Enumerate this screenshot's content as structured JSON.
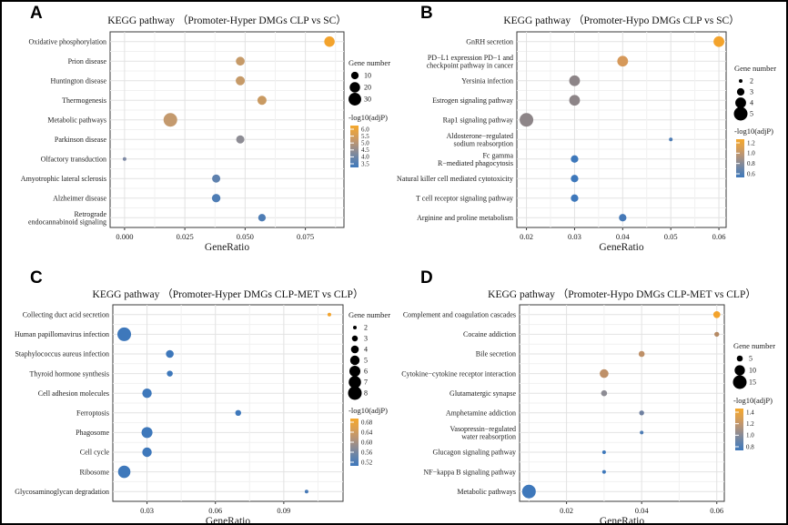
{
  "figure": {
    "name": "KEGG pathway enrichment dot plots",
    "x_axis_label": "GeneRatio",
    "palette": {
      "high_adjp": "#F3A32C",
      "mid_high_adjp": "#C49A6E",
      "mid_adjp": "#8D8C94",
      "low_adjp": "#3E78BB"
    }
  },
  "chart_data": [
    {
      "panel_label": "A",
      "type": "scatter",
      "title": "KEGG pathway （Promoter-Hyper DMGs CLP vs SC）",
      "xlabel": "GeneRatio",
      "xlim": [
        -0.006,
        0.091
      ],
      "xticks": {
        "values": [
          0.0,
          0.025,
          0.05,
          0.075
        ],
        "labels": [
          "0.000",
          "0.025",
          "0.050",
          "0.075"
        ]
      },
      "categories": [
        "Oxidative phosphorylation",
        "Prion disease",
        "Huntington disease",
        "Thermogenesis",
        "Metabolic pathways",
        "Parkinson disease",
        "Olfactory transduction",
        "Amyotrophic lateral sclerosis",
        "Alzheimer disease",
        [
          "Retrograde",
          "endocannabinoid signaling"
        ]
      ],
      "size_domain": [
        2,
        35
      ],
      "points": [
        {
          "pathway": "Oxidative phosphorylation",
          "gene_ratio": 0.085,
          "gene_number": 20,
          "log10_adjp": 6.0,
          "color": "#F3A32C"
        },
        {
          "pathway": "Prion disease",
          "gene_ratio": 0.048,
          "gene_number": 14,
          "log10_adjp": 5.3,
          "color": "#C69A68"
        },
        {
          "pathway": "Huntington disease",
          "gene_ratio": 0.048,
          "gene_number": 15,
          "log10_adjp": 5.3,
          "color": "#C69A68"
        },
        {
          "pathway": "Thermogenesis",
          "gene_ratio": 0.057,
          "gene_number": 15,
          "log10_adjp": 5.4,
          "color": "#C99A62"
        },
        {
          "pathway": "Metabolic pathways",
          "gene_ratio": 0.019,
          "gene_number": 35,
          "log10_adjp": 5.0,
          "color": "#C49A6E"
        },
        {
          "pathway": "Parkinson disease",
          "gene_ratio": 0.048,
          "gene_number": 12,
          "log10_adjp": 4.3,
          "color": "#8D8C94"
        },
        {
          "pathway": "Olfactory transduction",
          "gene_ratio": 0.0,
          "gene_number": 2,
          "log10_adjp": 4.0,
          "color": "#7E89A4"
        },
        {
          "pathway": "Amyotrophic lateral sclerosis",
          "gene_ratio": 0.038,
          "gene_number": 12,
          "log10_adjp": 3.7,
          "color": "#5E81AE"
        },
        {
          "pathway": "Alzheimer disease",
          "gene_ratio": 0.038,
          "gene_number": 13,
          "log10_adjp": 3.6,
          "color": "#4E7DB5"
        },
        {
          "pathway": "Retrograde endocannabinoid signaling",
          "gene_ratio": 0.057,
          "gene_number": 10,
          "log10_adjp": 3.7,
          "color": "#4E7DB5"
        }
      ],
      "legend": {
        "size_title": "Gene number",
        "sizes": [
          10,
          20,
          30
        ],
        "color_title": "-log10(adjP)",
        "color_ticks": [
          "6.0",
          "5.5",
          "5.0",
          "4.5",
          "4.0",
          "3.5"
        ],
        "gradient": [
          "#F5A82B",
          "#DDA04F",
          "#BB9573",
          "#8F8C92",
          "#6383AB",
          "#3E78BB"
        ]
      }
    },
    {
      "panel_label": "B",
      "type": "scatter",
      "title": "KEGG pathway （Promoter-Hypo DMGs CLP vs SC）",
      "xlabel": "GeneRatio",
      "xlim": [
        0.018,
        0.0615
      ],
      "xticks": {
        "values": [
          0.02,
          0.03,
          0.04,
          0.05,
          0.06
        ],
        "labels": [
          "0.02",
          "0.03",
          "0.04",
          "0.05",
          "0.06"
        ]
      },
      "categories": [
        "GnRH secretion",
        [
          "PD−L1 expression PD−1 and",
          "checkpoint pathway in cancer"
        ],
        "Yersinia infection",
        "Estrogen signaling pathway",
        "Rap1 signaling pathway",
        [
          "Aldosterone−regulated",
          "sodium reabsorption"
        ],
        [
          "Fc gamma",
          "R−mediated phagocytosis"
        ],
        "Natural killer cell mediated cytotoxicity",
        "T cell receptor signaling pathway",
        "Arginine and proline metabolism"
      ],
      "size_domain": [
        2,
        5
      ],
      "points": [
        {
          "pathway": "GnRH secretion",
          "gene_ratio": 0.06,
          "gene_number": 4,
          "log10_adjp": 1.3,
          "color": "#F3A32C"
        },
        {
          "pathway": "PD-L1 expression PD-1 and checkpoint pathway in cancer",
          "gene_ratio": 0.04,
          "gene_number": 4,
          "log10_adjp": 1.1,
          "color": "#D6995A"
        },
        {
          "pathway": "Yersinia infection",
          "gene_ratio": 0.03,
          "gene_number": 4,
          "log10_adjp": 0.8,
          "color": "#8D8588"
        },
        {
          "pathway": "Estrogen signaling pathway",
          "gene_ratio": 0.03,
          "gene_number": 4,
          "log10_adjp": 0.8,
          "color": "#8D8588"
        },
        {
          "pathway": "Rap1 signaling pathway",
          "gene_ratio": 0.02,
          "gene_number": 5,
          "log10_adjp": 0.8,
          "color": "#8D8588"
        },
        {
          "pathway": "Aldosterone-regulated sodium reabsorption",
          "gene_ratio": 0.05,
          "gene_number": 2,
          "log10_adjp": 0.65,
          "color": "#4E7DB5"
        },
        {
          "pathway": "Fc gamma R-mediated phagocytosis",
          "gene_ratio": 0.03,
          "gene_number": 3,
          "log10_adjp": 0.6,
          "color": "#3E78BB"
        },
        {
          "pathway": "Natural killer cell mediated cytotoxicity",
          "gene_ratio": 0.03,
          "gene_number": 3,
          "log10_adjp": 0.6,
          "color": "#3E78BB"
        },
        {
          "pathway": "T cell receptor signaling pathway",
          "gene_ratio": 0.03,
          "gene_number": 3,
          "log10_adjp": 0.6,
          "color": "#3E78BB"
        },
        {
          "pathway": "Arginine and proline metabolism",
          "gene_ratio": 0.04,
          "gene_number": 3,
          "log10_adjp": 0.62,
          "color": "#4679B7"
        }
      ],
      "legend": {
        "size_title": "Gene number",
        "sizes": [
          2,
          3,
          4,
          5
        ],
        "color_title": "-log10(adjP)",
        "color_ticks": [
          "1.2",
          "1.0",
          "0.8",
          "0.6"
        ],
        "gradient": [
          "#F5A82B",
          "#DDA04F",
          "#BB9573",
          "#8F8C92",
          "#6383AB",
          "#3E78BB"
        ]
      }
    },
    {
      "panel_label": "C",
      "type": "scatter",
      "title": "KEGG pathway （Promoter-Hyper DMGs CLP-MET vs CLP）",
      "xlabel": "GeneRatio",
      "xlim": [
        0.015,
        0.116
      ],
      "xticks": {
        "values": [
          0.03,
          0.06,
          0.09
        ],
        "labels": [
          "0.03",
          "0.06",
          "0.09"
        ]
      },
      "categories": [
        "Collecting duct acid secretion",
        "Human papillomavirus infection",
        "Staphylococcus aureus infection",
        "Thyroid hormone synthesis",
        "Cell adhesion molecules",
        "Ferroptosis",
        "Phagosome",
        "Cell cycle",
        "Ribosome",
        "Glycosaminoglycan degradation"
      ],
      "size_domain": [
        2,
        8
      ],
      "points": [
        {
          "pathway": "Collecting duct acid secretion",
          "gene_ratio": 0.11,
          "gene_number": 2,
          "log10_adjp": 0.68,
          "color": "#F3A32C"
        },
        {
          "pathway": "Human papillomavirus infection",
          "gene_ratio": 0.02,
          "gene_number": 8,
          "log10_adjp": 0.52,
          "color": "#3E78BB"
        },
        {
          "pathway": "Staphylococcus aureus infection",
          "gene_ratio": 0.04,
          "gene_number": 4,
          "log10_adjp": 0.52,
          "color": "#3E78BB"
        },
        {
          "pathway": "Thyroid hormone synthesis",
          "gene_ratio": 0.04,
          "gene_number": 3,
          "log10_adjp": 0.52,
          "color": "#3E78BB"
        },
        {
          "pathway": "Cell adhesion molecules",
          "gene_ratio": 0.03,
          "gene_number": 5,
          "log10_adjp": 0.52,
          "color": "#3E78BB"
        },
        {
          "pathway": "Ferroptosis",
          "gene_ratio": 0.07,
          "gene_number": 3,
          "log10_adjp": 0.52,
          "color": "#3E78BB"
        },
        {
          "pathway": "Phagosome",
          "gene_ratio": 0.03,
          "gene_number": 6,
          "log10_adjp": 0.52,
          "color": "#3E78BB"
        },
        {
          "pathway": "Cell cycle",
          "gene_ratio": 0.03,
          "gene_number": 5,
          "log10_adjp": 0.52,
          "color": "#3E78BB"
        },
        {
          "pathway": "Ribosome",
          "gene_ratio": 0.02,
          "gene_number": 7,
          "log10_adjp": 0.52,
          "color": "#3E78BB"
        },
        {
          "pathway": "Glycosaminoglycan degradation",
          "gene_ratio": 0.1,
          "gene_number": 2,
          "log10_adjp": 0.53,
          "color": "#4679B7"
        }
      ],
      "legend": {
        "size_title": "Gene number",
        "sizes": [
          2,
          3,
          4,
          5,
          6,
          7,
          8
        ],
        "color_title": "-log10(adjP)",
        "color_ticks": [
          "0.68",
          "0.64",
          "0.60",
          "0.56",
          "0.52"
        ],
        "gradient": [
          "#F5A82B",
          "#DDA04F",
          "#BB9573",
          "#8F8C92",
          "#6383AB",
          "#3E78BB"
        ]
      }
    },
    {
      "panel_label": "D",
      "type": "scatter",
      "title": "KEGG pathway （Promoter-Hypo DMGs CLP-MET vs CLP）",
      "xlabel": "GeneRatio",
      "xlim": [
        0.0075,
        0.062
      ],
      "xticks": {
        "values": [
          0.02,
          0.04,
          0.06
        ],
        "labels": [
          "0.02",
          "0.04",
          "0.06"
        ]
      },
      "categories": [
        "Complement and coagulation cascades",
        "Cocaine addiction",
        "Bile secretion",
        "Cytokine−cytokine receptor interaction",
        "Glutamatergic synapse",
        "Amphetamine addiction",
        [
          "Vasopressin−regulated",
          "water reabsorption"
        ],
        "Glucagon signaling pathway",
        "NF−kappa B signaling pathway",
        "Metabolic pathways"
      ],
      "size_domain": [
        3,
        15
      ],
      "points": [
        {
          "pathway": "Complement and coagulation cascades",
          "gene_ratio": 0.06,
          "gene_number": 6,
          "log10_adjp": 1.4,
          "color": "#F3A32C"
        },
        {
          "pathway": "Cocaine addiction",
          "gene_ratio": 0.06,
          "gene_number": 4,
          "log10_adjp": 1.05,
          "color": "#B58A64"
        },
        {
          "pathway": "Bile secretion",
          "gene_ratio": 0.04,
          "gene_number": 5,
          "log10_adjp": 1.0,
          "color": "#BE9068"
        },
        {
          "pathway": "Cytokine-cytokine receptor interaction",
          "gene_ratio": 0.03,
          "gene_number": 8,
          "log10_adjp": 1.0,
          "color": "#BE9068"
        },
        {
          "pathway": "Glutamatergic synapse",
          "gene_ratio": 0.03,
          "gene_number": 5,
          "log10_adjp": 0.85,
          "color": "#8D8C94"
        },
        {
          "pathway": "Amphetamine addiction",
          "gene_ratio": 0.04,
          "gene_number": 4,
          "log10_adjp": 0.8,
          "color": "#6F80A0"
        },
        {
          "pathway": "Vasopressin-regulated water reabsorption",
          "gene_ratio": 0.04,
          "gene_number": 3,
          "log10_adjp": 0.75,
          "color": "#4E7DB5"
        },
        {
          "pathway": "Glucagon signaling pathway",
          "gene_ratio": 0.03,
          "gene_number": 3,
          "log10_adjp": 0.72,
          "color": "#3E78BB"
        },
        {
          "pathway": "NF-kappa B signaling pathway",
          "gene_ratio": 0.03,
          "gene_number": 3,
          "log10_adjp": 0.72,
          "color": "#3E78BB"
        },
        {
          "pathway": "Metabolic pathways",
          "gene_ratio": 0.01,
          "gene_number": 15,
          "log10_adjp": 0.7,
          "color": "#3E78BB"
        }
      ],
      "legend": {
        "size_title": "Gene number",
        "sizes": [
          5,
          10,
          15
        ],
        "color_title": "-log10(adjP)",
        "color_ticks": [
          "1.4",
          "1.2",
          "1.0",
          "0.8"
        ],
        "gradient": [
          "#F5A82B",
          "#DDA04F",
          "#BB9573",
          "#8F8C92",
          "#6383AB",
          "#3E78BB"
        ]
      }
    }
  ]
}
